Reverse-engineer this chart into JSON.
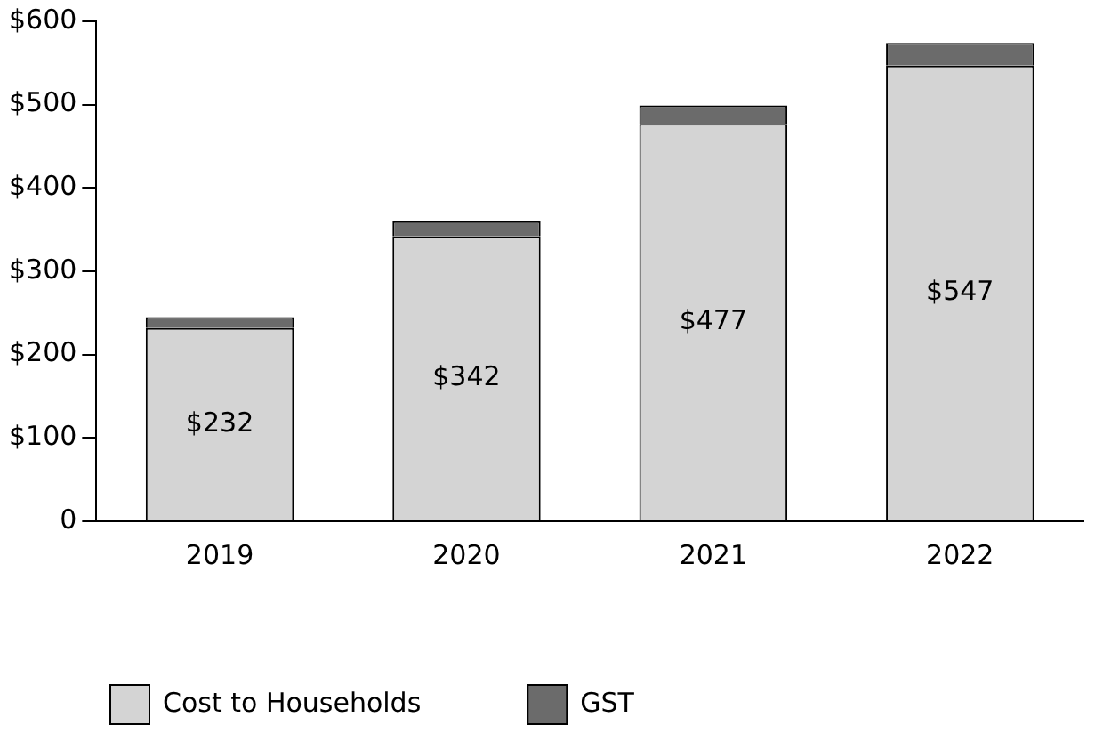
{
  "chart_data": {
    "type": "bar",
    "stacked": true,
    "categories": [
      "2019",
      "2020",
      "2021",
      "2022"
    ],
    "series": [
      {
        "name": "Cost to Households",
        "color": "#d4d4d4",
        "values": [
          232,
          342,
          477,
          547
        ],
        "value_labels": [
          "$232",
          "$342",
          "$477",
          "$547"
        ]
      },
      {
        "name": "GST",
        "color": "#6b6b6b",
        "values": [
          13,
          18,
          22,
          27
        ]
      }
    ],
    "ylim": [
      0,
      600
    ],
    "yticks": [
      {
        "value": 0,
        "label": "0"
      },
      {
        "value": 100,
        "label": "$100"
      },
      {
        "value": 200,
        "label": "$200"
      },
      {
        "value": 300,
        "label": "$300"
      },
      {
        "value": 400,
        "label": "$400"
      },
      {
        "value": 500,
        "label": "$500"
      },
      {
        "value": 600,
        "label": "$600"
      }
    ],
    "grid": false,
    "legend": "bottom left"
  }
}
